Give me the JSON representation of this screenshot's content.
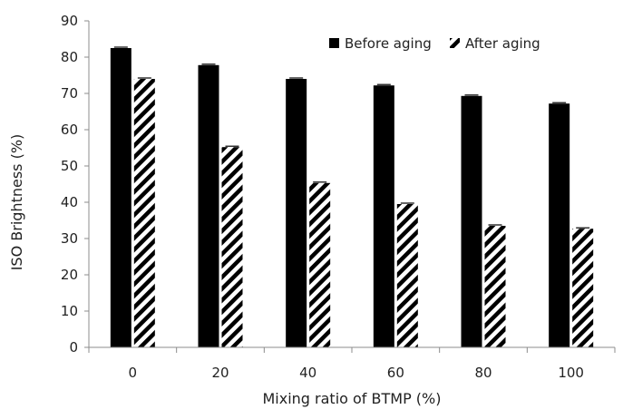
{
  "chart_data": {
    "type": "bar",
    "title": "",
    "xlabel": "Mixing ratio of BTMP  (%)",
    "ylabel": "ISO Brightness (%)",
    "ylim": [
      0,
      90
    ],
    "yticks": [
      0,
      10,
      20,
      30,
      40,
      50,
      60,
      70,
      80,
      90
    ],
    "categories": [
      "0",
      "20",
      "40",
      "60",
      "80",
      "100"
    ],
    "series": [
      {
        "name": "Before aging",
        "pattern": "solid",
        "color": "#000000",
        "values": [
          82.5,
          77.8,
          74.0,
          72.2,
          69.3,
          67.2
        ]
      },
      {
        "name": "After aging",
        "pattern": "diagonal-hatch",
        "color": "#000000",
        "values": [
          74.0,
          55.2,
          45.3,
          39.5,
          33.5,
          32.7
        ]
      }
    ],
    "legend_position": "top-right",
    "grid": false
  }
}
